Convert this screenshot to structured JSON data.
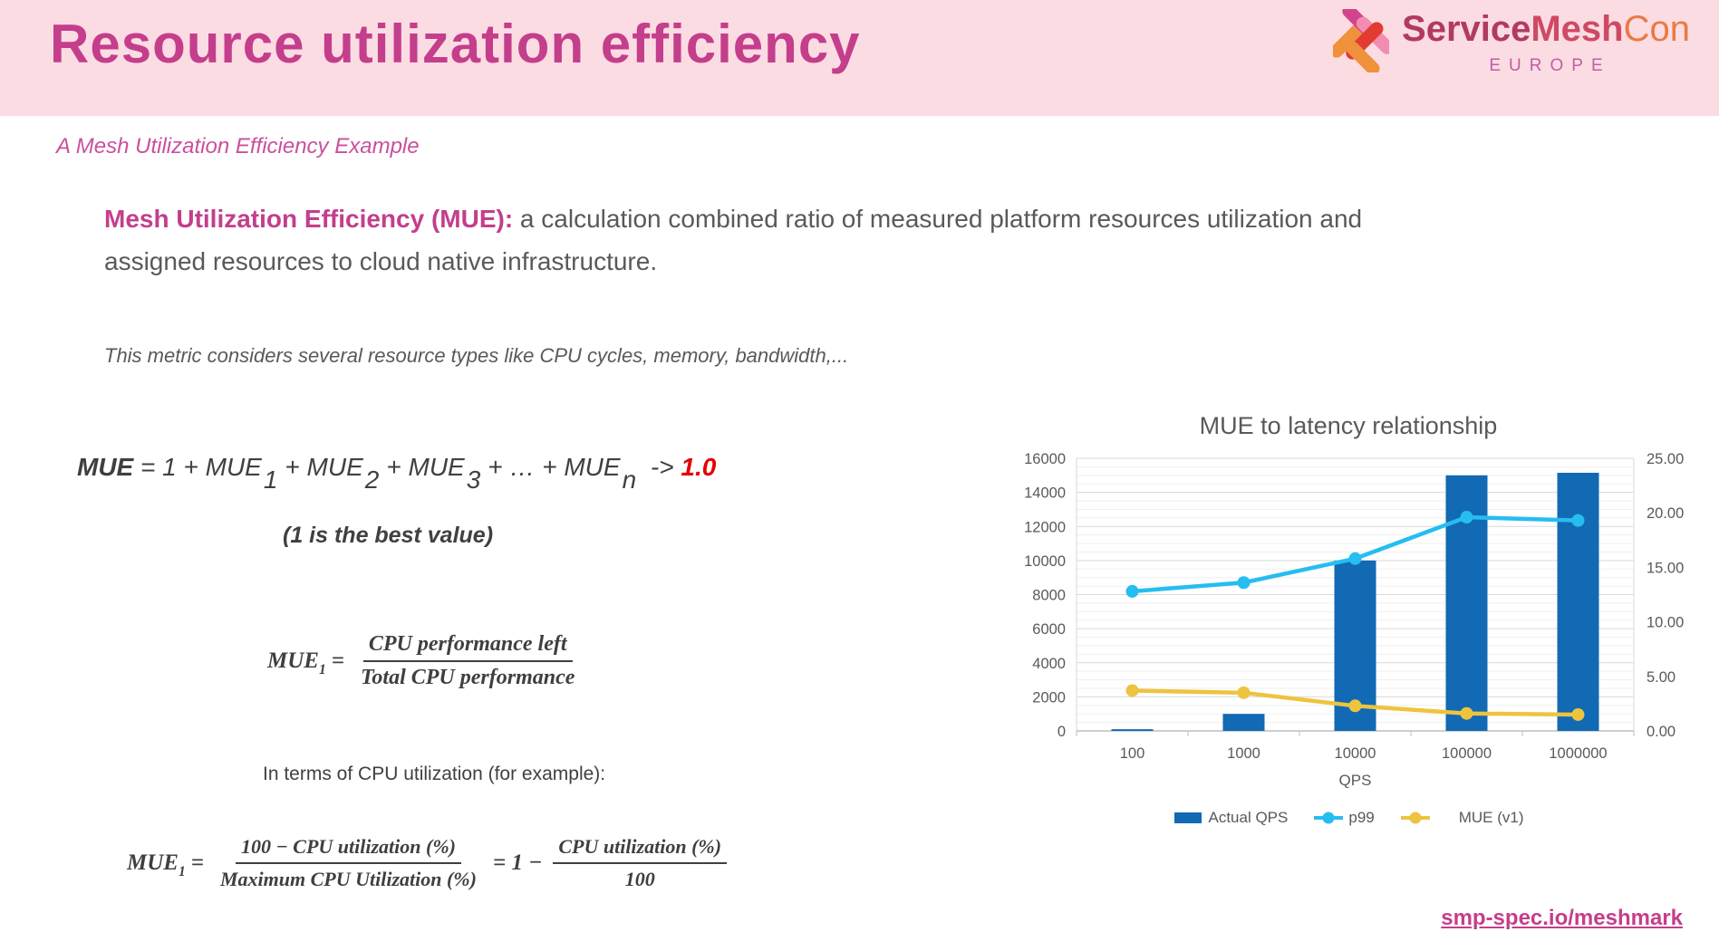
{
  "theme": {
    "pink_band": "#fbdce3",
    "title_pink": "#c43e8c",
    "subtitle_pink": "#ca509c",
    "body_gray": "#595959",
    "red": "#e60000",
    "logo_service": "#b13a62",
    "logo_mesh": "#ce4a63",
    "logo_con": "#ea7a44",
    "logo_europe": "#c45ca4",
    "logo_magenta": "#d2458e",
    "logo_orange": "#f0913b",
    "logo_red": "#e23b34",
    "logo_pink": "#f28cb0"
  },
  "header": {
    "title": "Resource utilization efficiency",
    "logo": {
      "service": "Service",
      "mesh": "Mesh",
      "con": "Con",
      "region": "EUROPE"
    }
  },
  "subtitle": "A Mesh Utilization Efficiency Example",
  "intro": {
    "lead": "Mesh Utilization Efficiency (MUE):",
    "rest": " a calculation combined ratio of measured platform resources utilization and assigned resources to cloud native infrastructure."
  },
  "note": "This metric considers several resource types like CPU cycles, memory, bandwidth,...",
  "formulas": {
    "main_parts": [
      {
        "text": "MUE ",
        "cls": "bold"
      },
      {
        "text": "= 1 + MUE",
        "cls": ""
      },
      {
        "text": "1",
        "cls": "sub"
      },
      {
        "text": "+ MUE",
        "cls": ""
      },
      {
        "text": "2",
        "cls": "sub"
      },
      {
        "text": "+ MUE",
        "cls": ""
      },
      {
        "text": "3",
        "cls": "sub"
      },
      {
        "text": "+ … + MUE",
        "cls": ""
      },
      {
        "text": "n",
        "cls": "sub"
      },
      {
        "text": " -> ",
        "cls": ""
      },
      {
        "text": "1.0",
        "cls": "red"
      }
    ],
    "best_value": "(1 is the best value)",
    "mue1": {
      "lhs": "MUE",
      "sub": "1",
      "eq": "=",
      "num": "CPU performance left",
      "den": "Total CPU performance"
    },
    "in_terms": "In terms of CPU utilization (for example):",
    "mue1_cpu": {
      "lhs": "MUE",
      "sub": "1",
      "eq": "=",
      "frac1": {
        "num": "100 − CPU utilization (%)",
        "den": "Maximum CPU Utilization (%)"
      },
      "mid": "= 1 −",
      "frac2": {
        "num": "CPU utilization (%)",
        "den": "100"
      }
    }
  },
  "chart_data": {
    "type": "bar",
    "subtype": "combo-bar-line",
    "title": "MUE to latency relationship",
    "categories": [
      "100",
      "1000",
      "10000",
      "100000",
      "1000000"
    ],
    "xlabel": "QPS",
    "left_axis": {
      "min": 0,
      "max": 16000,
      "step": 2000,
      "minor_step": 500
    },
    "right_axis": {
      "min": 0,
      "max": 25,
      "step": 5,
      "decimals": 2
    },
    "grid": true,
    "legend_position": "bottom",
    "series": [
      {
        "name": "Actual QPS",
        "kind": "bar",
        "axis": "left",
        "color": "#1269b4",
        "values": [
          100,
          1000,
          10000,
          15000,
          15150
        ]
      },
      {
        "name": "p99",
        "kind": "line",
        "axis": "right",
        "color": "#26bdf0",
        "values": [
          12.8,
          13.6,
          15.8,
          19.6,
          19.3
        ]
      },
      {
        "name": "MUE (v1)",
        "kind": "line",
        "axis": "right",
        "color": "#eec33f",
        "values": [
          3.7,
          3.5,
          2.3,
          1.6,
          1.5
        ]
      }
    ]
  },
  "footer_link": "smp-spec.io/meshmark"
}
